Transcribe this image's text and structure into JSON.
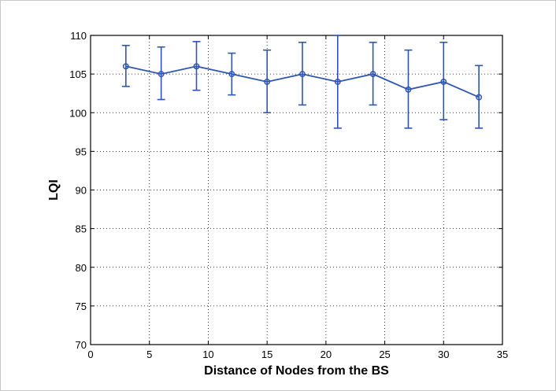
{
  "chart_data": {
    "type": "line",
    "title": "",
    "xlabel": "Distance of Nodes from the BS",
    "ylabel": "LQI",
    "xlim": [
      0,
      35
    ],
    "ylim": [
      70,
      110
    ],
    "xticks": [
      0,
      5,
      10,
      15,
      20,
      25,
      30,
      35
    ],
    "yticks": [
      70,
      75,
      80,
      85,
      90,
      95,
      100,
      105,
      110
    ],
    "xtick_labels": [
      "0",
      "5",
      "10",
      "15",
      "20",
      "25",
      "30",
      "35"
    ],
    "ytick_labels": [
      "70",
      "75",
      "80",
      "85",
      "90",
      "95",
      "100",
      "105",
      "110"
    ],
    "grid": true,
    "grid_style": "dotted",
    "series": [
      {
        "color": "#2f55b4",
        "marker": "circle",
        "error_bars": true,
        "x": [
          3,
          6,
          9,
          12,
          15,
          18,
          21,
          24,
          27,
          30,
          33
        ],
        "y": [
          106,
          105,
          106,
          105,
          104,
          105,
          104,
          105,
          103,
          104,
          102
        ],
        "y_upper": [
          108.7,
          108.5,
          109.2,
          107.7,
          108.1,
          109.1,
          110,
          109.1,
          108.1,
          109.1,
          106.1
        ],
        "y_lower": [
          103.4,
          101.7,
          102.9,
          102.3,
          100,
          101,
          98,
          101,
          98,
          99.1,
          98
        ]
      }
    ]
  }
}
